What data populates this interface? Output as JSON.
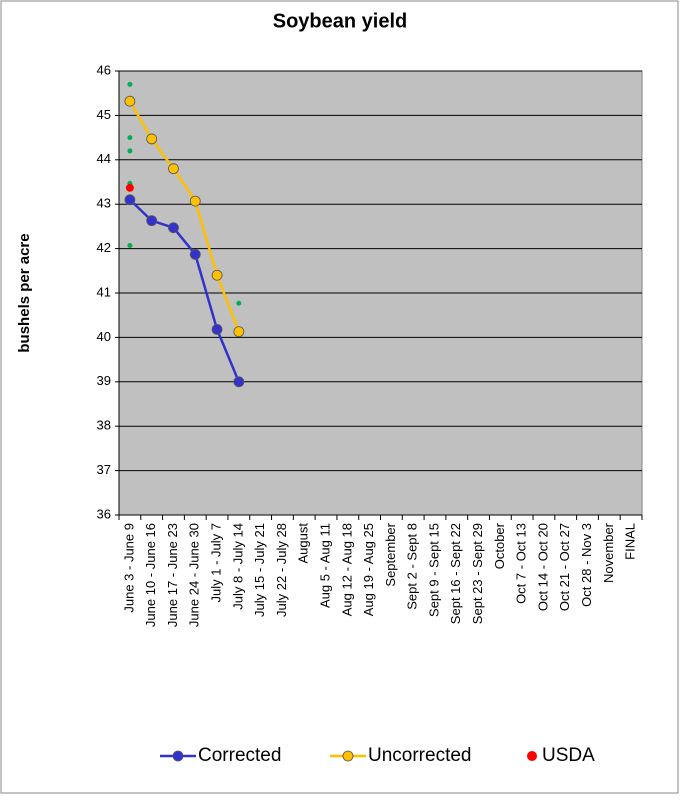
{
  "chart_data": {
    "type": "line",
    "title": "Soybean yield",
    "y_label": "bushels per acre",
    "categories": [
      "June 3 - June 9",
      "June 10 - June 16",
      "June 17 - June 23",
      "June 24 - June 30",
      "July 1 - July 7",
      "July 8 - July 14",
      "July 15 - July 21",
      "July 22 - July 28",
      "August",
      "Aug 5 - Aug 11",
      "Aug 12 - Aug 18",
      "Aug 19 - Aug 25",
      "September",
      "Sept 2 - Sept 8",
      "Sept 9 - Sept 15",
      "Sept 16 - Sept 22",
      "Sept 23 - Sept 29",
      "October",
      "Oct 7 - Oct 13",
      "Oct 14 - Oct 20",
      "Oct 21 - Oct 27",
      "Oct 28 - Nov 3",
      "November",
      "FINAL"
    ],
    "series": [
      {
        "name": "Corrected",
        "color": "#3333cc",
        "line": true,
        "values": [
          43.1,
          42.63,
          42.47,
          41.87,
          40.18,
          39.0,
          null,
          null,
          null,
          null,
          null,
          null,
          null,
          null,
          null,
          null,
          null,
          null,
          null,
          null,
          null,
          null,
          null,
          null
        ]
      },
      {
        "name": "Uncorrected",
        "color": "#ffc000",
        "line": true,
        "values": [
          45.32,
          44.47,
          43.8,
          43.07,
          41.4,
          40.13,
          null,
          null,
          null,
          null,
          null,
          null,
          null,
          null,
          null,
          null,
          null,
          null,
          null,
          null,
          null,
          null,
          null,
          null
        ]
      },
      {
        "color": "#00b050",
        "line": false,
        "values": [
          45.7,
          null,
          null,
          null,
          null,
          40.77,
          null,
          null,
          null,
          null,
          null,
          null,
          null,
          null,
          null,
          null,
          null,
          null,
          null,
          null,
          null,
          null,
          null,
          null
        ]
      },
      {
        "color": "#00b050",
        "line": false,
        "values": [
          44.5,
          null,
          null,
          null,
          null,
          null,
          null,
          null,
          null,
          null,
          null,
          null,
          null,
          null,
          null,
          null,
          null,
          null,
          null,
          null,
          null,
          null,
          null,
          null
        ]
      },
      {
        "color": "#00b050",
        "line": false,
        "values": [
          44.2,
          null,
          null,
          null,
          null,
          null,
          null,
          null,
          null,
          null,
          null,
          null,
          null,
          null,
          null,
          null,
          null,
          null,
          null,
          null,
          null,
          null,
          null,
          null
        ]
      },
      {
        "color": "#00b050",
        "line": false,
        "values": [
          43.47,
          null,
          null,
          null,
          null,
          null,
          null,
          null,
          null,
          null,
          null,
          null,
          null,
          null,
          null,
          null,
          null,
          null,
          null,
          null,
          null,
          null,
          null,
          null
        ]
      },
      {
        "color": "#00b050",
        "line": false,
        "values": [
          42.07,
          null,
          null,
          null,
          null,
          null,
          null,
          null,
          null,
          null,
          null,
          null,
          null,
          null,
          null,
          null,
          null,
          null,
          null,
          null,
          null,
          null,
          null,
          null
        ]
      },
      {
        "name": "USDA",
        "color": "#ff0000",
        "line": false,
        "values": [
          43.37,
          null,
          null,
          null,
          null,
          null,
          null,
          null,
          null,
          null,
          null,
          null,
          null,
          null,
          null,
          null,
          null,
          null,
          null,
          null,
          null,
          null,
          null,
          null
        ]
      }
    ],
    "ylim": [
      36,
      46
    ],
    "yticks": [
      36,
      37,
      38,
      39,
      40,
      41,
      42,
      43,
      44,
      45,
      46
    ],
    "grid": true,
    "legend": "bottom"
  }
}
